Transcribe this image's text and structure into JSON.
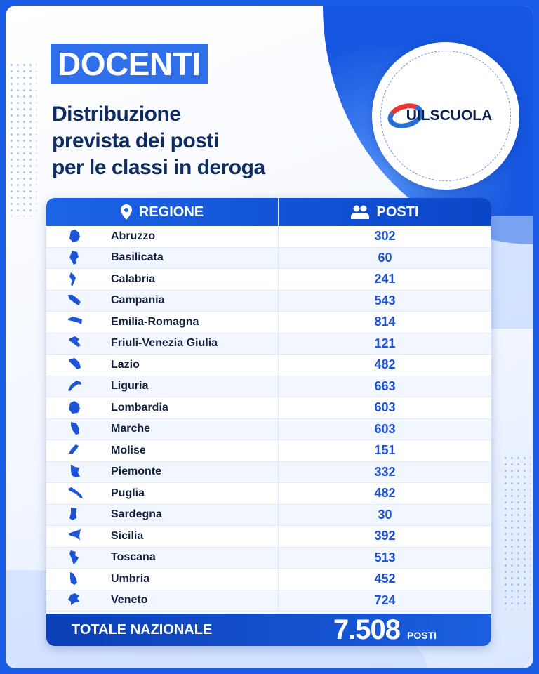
{
  "header": {
    "badge": "DOCENTI",
    "subtitle_lines": [
      "Distribuzione",
      "prevista dei posti",
      "per le classi in deroga"
    ]
  },
  "logo": {
    "text": "UILSCUOLA"
  },
  "colors": {
    "primary": "#1d64e6",
    "dark": "#0f2d63",
    "value": "#1d52d1"
  },
  "table": {
    "headers": {
      "region": "REGIONE",
      "posts": "POSTI",
      "region_icon": "map-pin-icon",
      "posts_icon": "users-icon"
    },
    "rows": [
      {
        "region": "Abruzzo",
        "posts": "302"
      },
      {
        "region": "Basilicata",
        "posts": "60"
      },
      {
        "region": "Calabria",
        "posts": "241"
      },
      {
        "region": "Campania",
        "posts": "543"
      },
      {
        "region": "Emilia-Romagna",
        "posts": "814"
      },
      {
        "region": "Friuli-Venezia Giulia",
        "posts": "121"
      },
      {
        "region": "Lazio",
        "posts": "482"
      },
      {
        "region": "Liguria",
        "posts": "663"
      },
      {
        "region": "Lombardia",
        "posts": "603"
      },
      {
        "region": "Marche",
        "posts": "603"
      },
      {
        "region": "Molise",
        "posts": "151"
      },
      {
        "region": "Piemonte",
        "posts": "332"
      },
      {
        "region": "Puglia",
        "posts": "482"
      },
      {
        "region": "Sardegna",
        "posts": "30"
      },
      {
        "region": "Sicilia",
        "posts": "392"
      },
      {
        "region": "Toscana",
        "posts": "513"
      },
      {
        "region": "Umbria",
        "posts": "452"
      },
      {
        "region": "Veneto",
        "posts": "724"
      }
    ],
    "total": {
      "label": "TOTALE NAZIONALE",
      "value": "7.508",
      "unit": "POSTI"
    }
  }
}
